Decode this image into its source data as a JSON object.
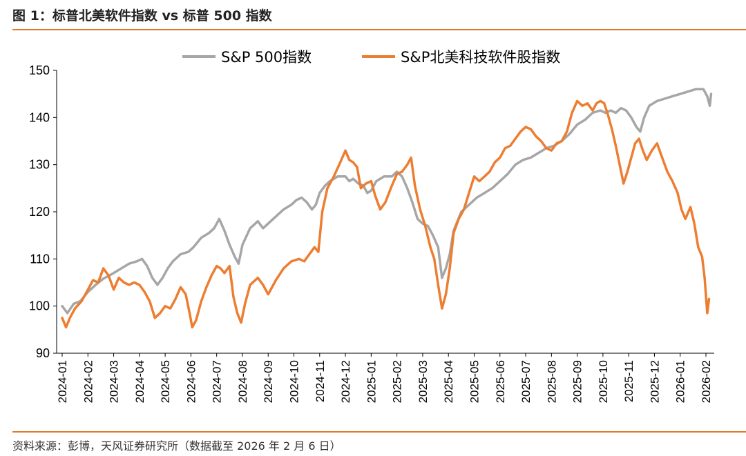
{
  "header": {
    "title": "图 1：标普北美软件指数  vs  标普 500 指数"
  },
  "footer": {
    "source": "资料来源：彭博，天风证券研究所（数据截至 2026 年 2 月 6 日）"
  },
  "colors": {
    "accent": "#E07A2B",
    "sp500": "#A6A6A6",
    "software": "#ED7D31"
  },
  "chart_data": {
    "type": "line",
    "title": "",
    "xlabel": "",
    "ylabel": "",
    "ylim": [
      90,
      150
    ],
    "yticks": [
      90,
      100,
      110,
      120,
      130,
      140,
      150
    ],
    "grid": false,
    "legend": "top-center",
    "categories": [
      "2024-01",
      "2024-02",
      "2024-03",
      "2024-04",
      "2024-05",
      "2024-06",
      "2024-07",
      "2024-08",
      "2024-09",
      "2024-10",
      "2024-11",
      "2024-12",
      "2025-01",
      "2025-02",
      "2025-03",
      "2025-04",
      "2025-05",
      "2025-06",
      "2025-07",
      "2025-08",
      "2025-09",
      "2025-10",
      "2025-11",
      "2025-12",
      "2026-01",
      "2026-02"
    ],
    "series": [
      {
        "name": "S&P 500指数",
        "color": "#A6A6A6",
        "points": [
          [
            0.0,
            100.0
          ],
          [
            0.2,
            98.5
          ],
          [
            0.45,
            100.5
          ],
          [
            0.7,
            101.0
          ],
          [
            1.0,
            103.0
          ],
          [
            1.3,
            104.5
          ],
          [
            1.6,
            105.8
          ],
          [
            2.0,
            107.0
          ],
          [
            2.3,
            108.0
          ],
          [
            2.6,
            109.0
          ],
          [
            2.9,
            109.5
          ],
          [
            3.1,
            110.0
          ],
          [
            3.3,
            108.5
          ],
          [
            3.5,
            106.0
          ],
          [
            3.7,
            104.5
          ],
          [
            3.9,
            106.0
          ],
          [
            4.1,
            108.0
          ],
          [
            4.3,
            109.5
          ],
          [
            4.6,
            111.0
          ],
          [
            4.9,
            111.5
          ],
          [
            5.1,
            112.5
          ],
          [
            5.4,
            114.5
          ],
          [
            5.7,
            115.5
          ],
          [
            5.9,
            116.5
          ],
          [
            6.1,
            118.5
          ],
          [
            6.3,
            116.0
          ],
          [
            6.5,
            113.0
          ],
          [
            6.7,
            110.5
          ],
          [
            6.85,
            109.0
          ],
          [
            7.0,
            113.0
          ],
          [
            7.3,
            116.5
          ],
          [
            7.6,
            118.0
          ],
          [
            7.8,
            116.5
          ],
          [
            8.0,
            117.5
          ],
          [
            8.3,
            119.0
          ],
          [
            8.6,
            120.5
          ],
          [
            8.9,
            121.5
          ],
          [
            9.1,
            122.5
          ],
          [
            9.3,
            123.0
          ],
          [
            9.5,
            122.0
          ],
          [
            9.7,
            120.5
          ],
          [
            9.85,
            121.5
          ],
          [
            10.0,
            124.0
          ],
          [
            10.2,
            125.5
          ],
          [
            10.4,
            126.5
          ],
          [
            10.7,
            127.5
          ],
          [
            11.0,
            127.5
          ],
          [
            11.15,
            126.5
          ],
          [
            11.3,
            127.0
          ],
          [
            11.5,
            126.0
          ],
          [
            11.7,
            125.5
          ],
          [
            11.85,
            124.0
          ],
          [
            12.0,
            124.5
          ],
          [
            12.2,
            126.5
          ],
          [
            12.5,
            127.5
          ],
          [
            12.8,
            127.5
          ],
          [
            13.0,
            128.5
          ],
          [
            13.2,
            127.5
          ],
          [
            13.4,
            125.0
          ],
          [
            13.6,
            122.0
          ],
          [
            13.8,
            118.5
          ],
          [
            14.0,
            117.5
          ],
          [
            14.2,
            117.0
          ],
          [
            14.4,
            115.0
          ],
          [
            14.6,
            112.5
          ],
          [
            14.75,
            106.0
          ],
          [
            14.9,
            108.0
          ],
          [
            15.05,
            111.0
          ],
          [
            15.2,
            116.0
          ],
          [
            15.5,
            120.0
          ],
          [
            15.8,
            121.5
          ],
          [
            16.1,
            123.0
          ],
          [
            16.4,
            124.0
          ],
          [
            16.7,
            125.0
          ],
          [
            17.0,
            126.5
          ],
          [
            17.3,
            128.0
          ],
          [
            17.6,
            130.0
          ],
          [
            17.9,
            131.0
          ],
          [
            18.2,
            131.5
          ],
          [
            18.5,
            132.5
          ],
          [
            18.8,
            133.5
          ],
          [
            19.1,
            134.0
          ],
          [
            19.4,
            135.0
          ],
          [
            19.7,
            136.5
          ],
          [
            20.0,
            138.5
          ],
          [
            20.3,
            139.5
          ],
          [
            20.6,
            141.0
          ],
          [
            20.9,
            141.5
          ],
          [
            21.1,
            141.0
          ],
          [
            21.3,
            141.5
          ],
          [
            21.5,
            141.0
          ],
          [
            21.7,
            142.0
          ],
          [
            21.9,
            141.5
          ],
          [
            22.1,
            140.0
          ],
          [
            22.3,
            138.0
          ],
          [
            22.45,
            137.0
          ],
          [
            22.6,
            140.0
          ],
          [
            22.8,
            142.5
          ],
          [
            23.1,
            143.5
          ],
          [
            23.4,
            144.0
          ],
          [
            23.7,
            144.5
          ],
          [
            24.0,
            145.0
          ],
          [
            24.3,
            145.5
          ],
          [
            24.6,
            146.0
          ],
          [
            24.9,
            146.0
          ],
          [
            25.05,
            144.5
          ],
          [
            25.15,
            142.5
          ],
          [
            25.2,
            145.0
          ]
        ]
      },
      {
        "name": "S&P北美科技软件股指数",
        "color": "#ED7D31",
        "points": [
          [
            0.0,
            97.5
          ],
          [
            0.15,
            95.5
          ],
          [
            0.3,
            97.5
          ],
          [
            0.5,
            99.5
          ],
          [
            0.75,
            101.0
          ],
          [
            1.0,
            103.5
          ],
          [
            1.2,
            105.5
          ],
          [
            1.4,
            105.0
          ],
          [
            1.6,
            108.0
          ],
          [
            1.8,
            106.5
          ],
          [
            2.0,
            103.5
          ],
          [
            2.2,
            106.0
          ],
          [
            2.4,
            105.0
          ],
          [
            2.6,
            104.5
          ],
          [
            2.8,
            105.0
          ],
          [
            3.0,
            104.5
          ],
          [
            3.2,
            103.0
          ],
          [
            3.4,
            101.0
          ],
          [
            3.6,
            97.5
          ],
          [
            3.8,
            98.5
          ],
          [
            4.0,
            100.0
          ],
          [
            4.2,
            99.5
          ],
          [
            4.4,
            101.5
          ],
          [
            4.6,
            104.0
          ],
          [
            4.8,
            102.5
          ],
          [
            4.95,
            98.5
          ],
          [
            5.05,
            95.5
          ],
          [
            5.2,
            97.0
          ],
          [
            5.4,
            101.0
          ],
          [
            5.6,
            104.0
          ],
          [
            5.8,
            106.5
          ],
          [
            6.0,
            108.5
          ],
          [
            6.15,
            108.0
          ],
          [
            6.3,
            107.0
          ],
          [
            6.5,
            108.5
          ],
          [
            6.65,
            102.0
          ],
          [
            6.8,
            98.5
          ],
          [
            6.95,
            96.5
          ],
          [
            7.1,
            100.5
          ],
          [
            7.3,
            104.5
          ],
          [
            7.6,
            106.0
          ],
          [
            7.8,
            104.5
          ],
          [
            8.0,
            102.5
          ],
          [
            8.3,
            105.5
          ],
          [
            8.6,
            108.0
          ],
          [
            8.9,
            109.5
          ],
          [
            9.2,
            110.0
          ],
          [
            9.4,
            109.5
          ],
          [
            9.6,
            111.0
          ],
          [
            9.8,
            112.5
          ],
          [
            9.95,
            111.5
          ],
          [
            10.1,
            120.0
          ],
          [
            10.3,
            125.0
          ],
          [
            10.55,
            127.5
          ],
          [
            10.8,
            130.5
          ],
          [
            11.0,
            133.0
          ],
          [
            11.15,
            131.0
          ],
          [
            11.3,
            130.5
          ],
          [
            11.45,
            129.5
          ],
          [
            11.6,
            125.0
          ],
          [
            11.8,
            126.0
          ],
          [
            12.0,
            126.5
          ],
          [
            12.15,
            123.5
          ],
          [
            12.35,
            120.5
          ],
          [
            12.55,
            122.0
          ],
          [
            12.8,
            125.5
          ],
          [
            13.0,
            128.0
          ],
          [
            13.2,
            128.5
          ],
          [
            13.4,
            130.0
          ],
          [
            13.55,
            131.5
          ],
          [
            13.7,
            125.5
          ],
          [
            13.9,
            120.5
          ],
          [
            14.1,
            117.0
          ],
          [
            14.3,
            112.5
          ],
          [
            14.45,
            110.0
          ],
          [
            14.6,
            104.5
          ],
          [
            14.75,
            99.5
          ],
          [
            14.9,
            102.5
          ],
          [
            15.05,
            108.0
          ],
          [
            15.2,
            115.5
          ],
          [
            15.4,
            118.5
          ],
          [
            15.6,
            120.5
          ],
          [
            15.8,
            124.0
          ],
          [
            16.0,
            127.5
          ],
          [
            16.2,
            126.5
          ],
          [
            16.4,
            127.5
          ],
          [
            16.6,
            128.5
          ],
          [
            16.8,
            130.5
          ],
          [
            17.0,
            131.5
          ],
          [
            17.2,
            133.5
          ],
          [
            17.4,
            134.0
          ],
          [
            17.6,
            135.5
          ],
          [
            17.8,
            137.0
          ],
          [
            18.0,
            138.0
          ],
          [
            18.2,
            137.5
          ],
          [
            18.4,
            136.0
          ],
          [
            18.6,
            135.0
          ],
          [
            18.8,
            133.5
          ],
          [
            19.0,
            133.0
          ],
          [
            19.2,
            134.5
          ],
          [
            19.4,
            135.0
          ],
          [
            19.6,
            137.0
          ],
          [
            19.8,
            141.0
          ],
          [
            20.0,
            143.5
          ],
          [
            20.2,
            142.5
          ],
          [
            20.4,
            143.0
          ],
          [
            20.6,
            141.5
          ],
          [
            20.75,
            143.0
          ],
          [
            20.9,
            143.5
          ],
          [
            21.05,
            143.0
          ],
          [
            21.2,
            140.5
          ],
          [
            21.35,
            137.5
          ],
          [
            21.5,
            134.0
          ],
          [
            21.65,
            130.0
          ],
          [
            21.8,
            126.0
          ],
          [
            21.95,
            128.5
          ],
          [
            22.1,
            131.5
          ],
          [
            22.25,
            134.5
          ],
          [
            22.4,
            135.5
          ],
          [
            22.55,
            133.0
          ],
          [
            22.7,
            131.0
          ],
          [
            22.9,
            133.0
          ],
          [
            23.1,
            134.5
          ],
          [
            23.3,
            131.5
          ],
          [
            23.5,
            128.5
          ],
          [
            23.7,
            126.5
          ],
          [
            23.9,
            124.0
          ],
          [
            24.05,
            120.5
          ],
          [
            24.2,
            118.5
          ],
          [
            24.4,
            121.0
          ],
          [
            24.55,
            117.5
          ],
          [
            24.7,
            112.5
          ],
          [
            24.85,
            110.5
          ],
          [
            24.95,
            106.0
          ],
          [
            25.05,
            98.5
          ],
          [
            25.12,
            101.5
          ]
        ]
      }
    ]
  }
}
